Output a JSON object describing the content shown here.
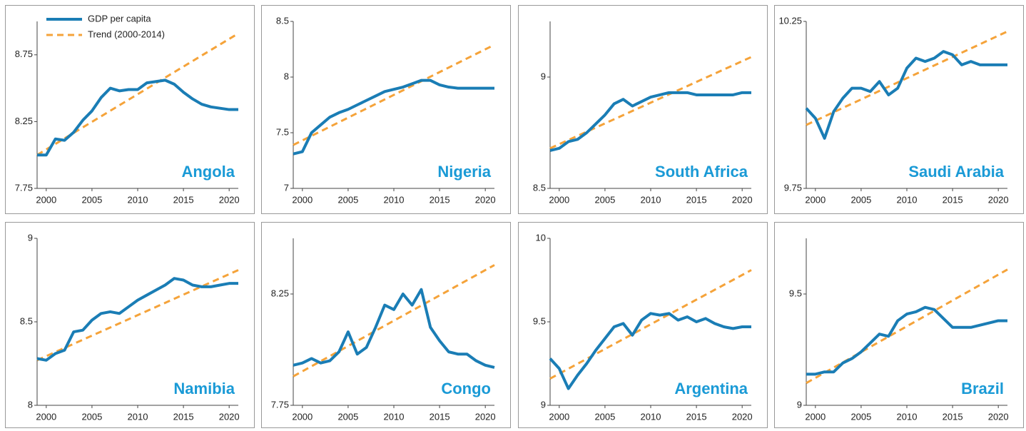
{
  "chart_data": [
    {
      "type": "line",
      "title": "Angola",
      "x": [
        1999,
        2000,
        2001,
        2002,
        2003,
        2004,
        2005,
        2006,
        2007,
        2008,
        2009,
        2010,
        2011,
        2012,
        2013,
        2014,
        2015,
        2016,
        2017,
        2018,
        2019,
        2020,
        2021
      ],
      "xlim": [
        1999,
        2021
      ],
      "xticks": [
        2000,
        2005,
        2010,
        2015,
        2020
      ],
      "ylim": [
        7.75,
        9
      ],
      "yticks": [
        7.75,
        8.25,
        8.75
      ],
      "legend": "top-left",
      "series": [
        {
          "name": "GDP per capita",
          "color": "#1a7db5",
          "style": "solid",
          "values": [
            8.0,
            8.0,
            8.12,
            8.11,
            8.17,
            8.26,
            8.33,
            8.43,
            8.5,
            8.48,
            8.49,
            8.49,
            8.54,
            8.55,
            8.56,
            8.53,
            8.47,
            8.42,
            8.38,
            8.36,
            8.35,
            8.34,
            8.34
          ]
        },
        {
          "name": "Trend (2000-2014)",
          "color": "#f5a33a",
          "style": "dashed",
          "x": [
            1999,
            2021
          ],
          "values": [
            8.0,
            8.91
          ]
        }
      ]
    },
    {
      "type": "line",
      "title": "Nigeria",
      "x": [
        1999,
        2000,
        2001,
        2002,
        2003,
        2004,
        2005,
        2006,
        2007,
        2008,
        2009,
        2010,
        2011,
        2012,
        2013,
        2014,
        2015,
        2016,
        2017,
        2018,
        2019,
        2020,
        2021
      ],
      "xlim": [
        1999,
        2021
      ],
      "xticks": [
        2000,
        2005,
        2010,
        2015,
        2020
      ],
      "ylim": [
        7,
        8.5
      ],
      "yticks": [
        7,
        7.5,
        8,
        8.5
      ],
      "series": [
        {
          "color": "#1a7db5",
          "style": "solid",
          "values": [
            7.31,
            7.33,
            7.5,
            7.57,
            7.64,
            7.68,
            7.71,
            7.75,
            7.79,
            7.83,
            7.87,
            7.89,
            7.91,
            7.94,
            7.97,
            7.97,
            7.93,
            7.91,
            7.9,
            7.9,
            7.9,
            7.9,
            7.9
          ]
        },
        {
          "color": "#f5a33a",
          "style": "dashed",
          "x": [
            1999,
            2021
          ],
          "values": [
            7.39,
            8.29
          ]
        }
      ]
    },
    {
      "type": "line",
      "title": "South Africa",
      "x": [
        1999,
        2000,
        2001,
        2002,
        2003,
        2004,
        2005,
        2006,
        2007,
        2008,
        2009,
        2010,
        2011,
        2012,
        2013,
        2014,
        2015,
        2016,
        2017,
        2018,
        2019,
        2020,
        2021
      ],
      "xlim": [
        1999,
        2021
      ],
      "xticks": [
        2000,
        2005,
        2010,
        2015,
        2020
      ],
      "ylim": [
        8.5,
        9.25
      ],
      "yticks": [
        8.5,
        9
      ],
      "series": [
        {
          "color": "#1a7db5",
          "style": "solid",
          "values": [
            8.67,
            8.68,
            8.71,
            8.72,
            8.75,
            8.79,
            8.83,
            8.88,
            8.9,
            8.87,
            8.89,
            8.91,
            8.92,
            8.93,
            8.93,
            8.93,
            8.92,
            8.92,
            8.92,
            8.92,
            8.92,
            8.93,
            8.93
          ]
        },
        {
          "color": "#f5a33a",
          "style": "dashed",
          "x": [
            1999,
            2021
          ],
          "values": [
            8.68,
            9.09
          ]
        }
      ]
    },
    {
      "type": "line",
      "title": "Saudi Arabia",
      "x": [
        1999,
        2000,
        2001,
        2002,
        2003,
        2004,
        2005,
        2006,
        2007,
        2008,
        2009,
        2010,
        2011,
        2012,
        2013,
        2014,
        2015,
        2016,
        2017,
        2018,
        2019,
        2020,
        2021
      ],
      "xlim": [
        1999,
        2021
      ],
      "xticks": [
        2000,
        2005,
        2010,
        2015,
        2020
      ],
      "ylim": [
        9.75,
        10.25
      ],
      "yticks": [
        9.75,
        10.25
      ],
      "series": [
        {
          "color": "#1a7db5",
          "style": "solid",
          "values": [
            9.99,
            9.96,
            9.9,
            9.98,
            10.02,
            10.05,
            10.05,
            10.04,
            10.07,
            10.03,
            10.05,
            10.11,
            10.14,
            10.13,
            10.14,
            10.16,
            10.15,
            10.12,
            10.13,
            10.12,
            10.12,
            10.12,
            10.12
          ]
        },
        {
          "color": "#f5a33a",
          "style": "dashed",
          "x": [
            1999,
            2021
          ],
          "values": [
            9.94,
            10.22
          ]
        }
      ]
    },
    {
      "type": "line",
      "title": "Namibia",
      "x": [
        1999,
        2000,
        2001,
        2002,
        2003,
        2004,
        2005,
        2006,
        2007,
        2008,
        2009,
        2010,
        2011,
        2012,
        2013,
        2014,
        2015,
        2016,
        2017,
        2018,
        2019,
        2020,
        2021
      ],
      "xlim": [
        1999,
        2021
      ],
      "xticks": [
        2000,
        2005,
        2010,
        2015,
        2020
      ],
      "ylim": [
        8,
        9
      ],
      "yticks": [
        8,
        8.5,
        9
      ],
      "series": [
        {
          "color": "#1a7db5",
          "style": "solid",
          "values": [
            8.28,
            8.27,
            8.31,
            8.33,
            8.44,
            8.45,
            8.51,
            8.55,
            8.56,
            8.55,
            8.59,
            8.63,
            8.66,
            8.69,
            8.72,
            8.76,
            8.75,
            8.72,
            8.71,
            8.71,
            8.72,
            8.73,
            8.73
          ]
        },
        {
          "color": "#f5a33a",
          "style": "dashed",
          "x": [
            1999,
            2021
          ],
          "values": [
            8.27,
            8.81
          ]
        }
      ]
    },
    {
      "type": "line",
      "title": "Congo",
      "x": [
        1999,
        2000,
        2001,
        2002,
        2003,
        2004,
        2005,
        2006,
        2007,
        2008,
        2009,
        2010,
        2011,
        2012,
        2013,
        2014,
        2015,
        2016,
        2017,
        2018,
        2019,
        2020,
        2021
      ],
      "xlim": [
        1999,
        2021
      ],
      "xticks": [
        2000,
        2005,
        2010,
        2015,
        2020
      ],
      "ylim": [
        7.75,
        8.5
      ],
      "yticks": [
        7.75,
        8.25
      ],
      "series": [
        {
          "color": "#1a7db5",
          "style": "solid",
          "values": [
            7.93,
            7.94,
            7.96,
            7.94,
            7.95,
            7.99,
            8.08,
            7.98,
            8.01,
            8.1,
            8.2,
            8.18,
            8.25,
            8.2,
            8.27,
            8.1,
            8.04,
            7.99,
            7.98,
            7.98,
            7.95,
            7.93,
            7.92
          ]
        },
        {
          "color": "#f5a33a",
          "style": "dashed",
          "x": [
            1999,
            2021
          ],
          "values": [
            7.88,
            8.38
          ]
        }
      ]
    },
    {
      "type": "line",
      "title": "Argentina",
      "x": [
        1999,
        2000,
        2001,
        2002,
        2003,
        2004,
        2005,
        2006,
        2007,
        2008,
        2009,
        2010,
        2011,
        2012,
        2013,
        2014,
        2015,
        2016,
        2017,
        2018,
        2019,
        2020,
        2021
      ],
      "xlim": [
        1999,
        2021
      ],
      "xticks": [
        2000,
        2005,
        2010,
        2015,
        2020
      ],
      "ylim": [
        9,
        10
      ],
      "yticks": [
        9,
        9.5,
        10
      ],
      "series": [
        {
          "color": "#1a7db5",
          "style": "solid",
          "values": [
            9.28,
            9.22,
            9.1,
            9.18,
            9.25,
            9.33,
            9.4,
            9.47,
            9.49,
            9.42,
            9.51,
            9.55,
            9.54,
            9.55,
            9.51,
            9.53,
            9.5,
            9.52,
            9.49,
            9.47,
            9.46,
            9.47,
            9.47
          ]
        },
        {
          "color": "#f5a33a",
          "style": "dashed",
          "x": [
            1999,
            2021
          ],
          "values": [
            9.16,
            9.81
          ]
        }
      ]
    },
    {
      "type": "line",
      "title": "Brazil",
      "x": [
        1999,
        2000,
        2001,
        2002,
        2003,
        2004,
        2005,
        2006,
        2007,
        2008,
        2009,
        2010,
        2011,
        2012,
        2013,
        2014,
        2015,
        2016,
        2017,
        2018,
        2019,
        2020,
        2021
      ],
      "xlim": [
        1999,
        2021
      ],
      "xticks": [
        2000,
        2005,
        2010,
        2015,
        2020
      ],
      "ylim": [
        9,
        9.75
      ],
      "yticks": [
        9,
        9.5
      ],
      "series": [
        {
          "color": "#1a7db5",
          "style": "solid",
          "values": [
            9.14,
            9.14,
            9.15,
            9.15,
            9.19,
            9.21,
            9.24,
            9.28,
            9.32,
            9.31,
            9.38,
            9.41,
            9.42,
            9.44,
            9.43,
            9.39,
            9.35,
            9.35,
            9.35,
            9.36,
            9.37,
            9.38,
            9.38
          ]
        },
        {
          "color": "#f5a33a",
          "style": "dashed",
          "x": [
            1999,
            2021
          ],
          "values": [
            9.1,
            9.61
          ]
        }
      ]
    }
  ]
}
